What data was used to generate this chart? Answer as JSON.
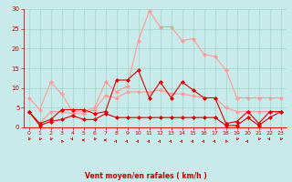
{
  "x": [
    0,
    1,
    2,
    3,
    4,
    5,
    6,
    7,
    8,
    9,
    10,
    11,
    12,
    13,
    14,
    15,
    16,
    17,
    18,
    19,
    20,
    21,
    22,
    23
  ],
  "series": [
    {
      "name": "rafales_light",
      "color": "#ff9999",
      "linewidth": 0.8,
      "markersize": 2.0,
      "marker": "D",
      "y": [
        7.5,
        4.5,
        11.5,
        8.5,
        4.0,
        4.0,
        5.0,
        11.5,
        9.0,
        10.5,
        22.0,
        29.5,
        25.5,
        25.5,
        22.0,
        22.5,
        18.5,
        18.0,
        14.5,
        7.5,
        7.5,
        7.5,
        7.5,
        7.5
      ]
    },
    {
      "name": "vent_light",
      "color": "#ff9999",
      "linewidth": 0.8,
      "markersize": 2.0,
      "marker": "D",
      "y": [
        4.0,
        1.0,
        4.0,
        4.0,
        3.5,
        3.5,
        4.5,
        8.0,
        7.5,
        9.0,
        9.0,
        9.0,
        9.5,
        8.5,
        8.5,
        8.0,
        7.5,
        7.5,
        5.0,
        4.0,
        4.0,
        4.0,
        4.0,
        4.0
      ]
    },
    {
      "name": "rafales_dark",
      "color": "#dd0000",
      "linewidth": 0.8,
      "markersize": 2.0,
      "marker": "D",
      "y": [
        4.0,
        1.0,
        2.0,
        4.5,
        4.5,
        4.5,
        3.5,
        4.0,
        12.0,
        12.0,
        14.5,
        7.5,
        11.5,
        7.5,
        11.5,
        9.5,
        7.5,
        7.5,
        1.0,
        1.5,
        4.0,
        1.0,
        4.0,
        4.0
      ]
    },
    {
      "name": "vent_dark",
      "color": "#dd0000",
      "linewidth": 0.8,
      "markersize": 2.0,
      "marker": "D",
      "y": [
        4.0,
        0.5,
        1.5,
        2.0,
        3.0,
        2.0,
        2.0,
        3.5,
        2.5,
        2.5,
        2.5,
        2.5,
        2.5,
        2.5,
        2.5,
        2.5,
        2.5,
        2.5,
        0.5,
        0.5,
        2.5,
        0.5,
        2.5,
        4.0
      ]
    }
  ],
  "xlabel": "Vent moyen/en rafales ( km/h )",
  "xlim": [
    -0.5,
    23.5
  ],
  "ylim": [
    0,
    30
  ],
  "yticks": [
    0,
    5,
    10,
    15,
    20,
    25,
    30
  ],
  "xticks": [
    0,
    1,
    2,
    3,
    4,
    5,
    6,
    7,
    8,
    9,
    10,
    11,
    12,
    13,
    14,
    15,
    16,
    17,
    18,
    19,
    20,
    21,
    22,
    23
  ],
  "bg_color": "#c8eaea",
  "grid_color": "#99ccbb",
  "tick_color": "#cc0000",
  "xlabel_color": "#cc0000",
  "axis_color": "#cc0000",
  "arrow_angles": [
    225,
    225,
    225,
    315,
    135,
    270,
    225,
    270,
    45,
    45,
    45,
    45,
    45,
    45,
    45,
    45,
    45,
    45,
    315,
    225,
    45,
    225,
    135,
    225
  ]
}
